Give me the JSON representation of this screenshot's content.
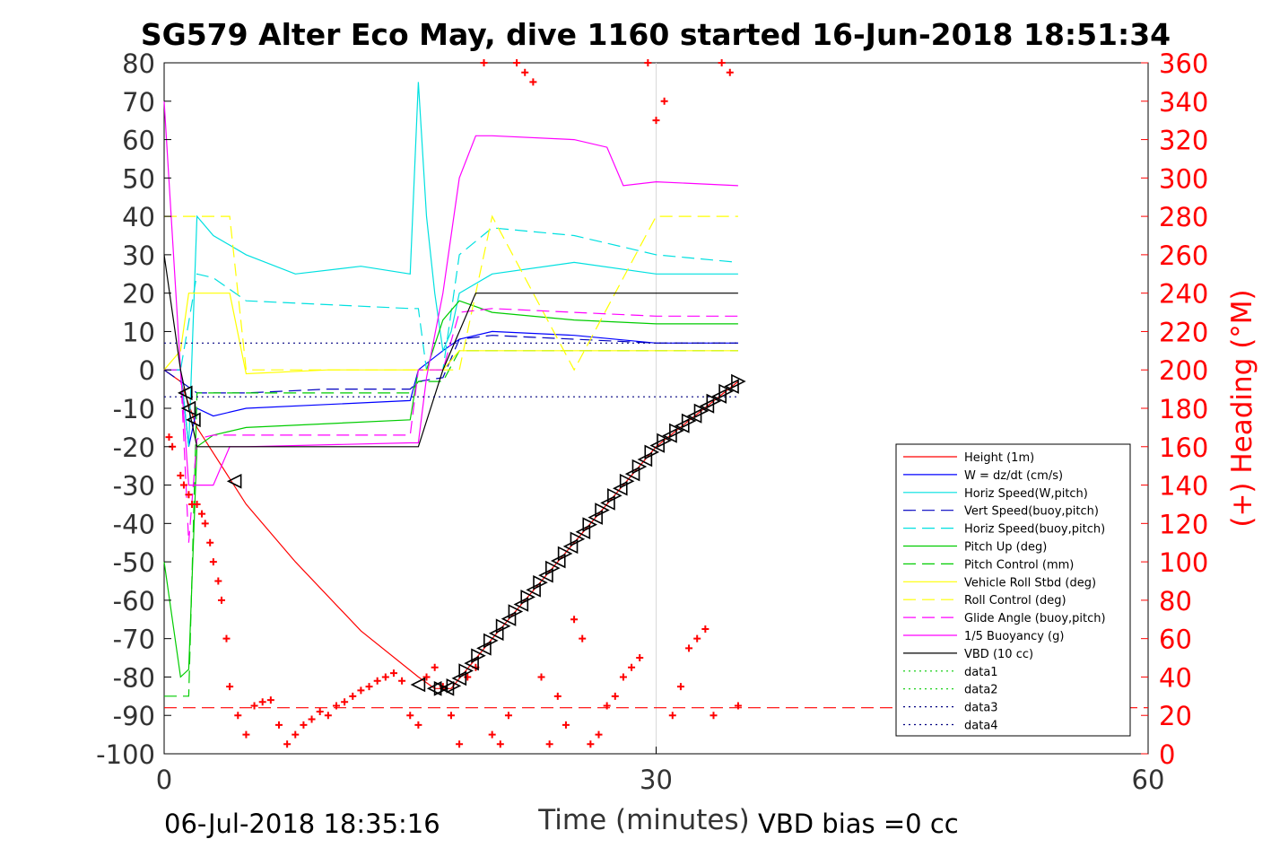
{
  "chart_data": {
    "type": "line",
    "title": "SG579 Alter Eco May, dive 1160 started 16-Jun-2018 18:51:34",
    "xlabel": "Time (minutes)",
    "ylabel": "",
    "y2label": "(+) Heading (°M)",
    "xlim": [
      0,
      60
    ],
    "ylim": [
      -100,
      80
    ],
    "y2lim": [
      0,
      360
    ],
    "xticks": [
      "0",
      "30",
      "60"
    ],
    "yticks": [
      "80",
      "70",
      "60",
      "50",
      "40",
      "30",
      "20",
      "10",
      "0",
      "-10",
      "-20",
      "-30",
      "-40",
      "-50",
      "-60",
      "-70",
      "-80",
      "-90",
      "-100"
    ],
    "y2ticks": [
      "360",
      "340",
      "320",
      "300",
      "280",
      "260",
      "240",
      "220",
      "200",
      "180",
      "160",
      "140",
      "120",
      "100",
      "80",
      "60",
      "40",
      "20",
      "0"
    ],
    "grid": "x-only at 30",
    "legend_position": "lower-right",
    "footer_left": "06-Jul-2018 18:35:16",
    "footer_right": "VBD bias =0 cc",
    "series": [
      {
        "name": "Height (1m)",
        "color": "#ff0000",
        "style": "solid",
        "x": [
          0,
          1,
          2,
          5,
          8,
          12,
          15.5,
          16.5,
          17.5,
          20,
          25,
          30,
          35
        ],
        "values": [
          0,
          -3,
          -15,
          -35,
          -50,
          -68,
          -80,
          -83,
          -83,
          -70,
          -45,
          -20,
          -3
        ]
      },
      {
        "name": "W = dz/dt (cm/s)",
        "color": "#0000ff",
        "style": "solid",
        "x": [
          0,
          1,
          1.5,
          2,
          3,
          5,
          10,
          15,
          15.5,
          17,
          18,
          20,
          25,
          30,
          35
        ],
        "values": [
          0,
          0,
          -20,
          -10,
          -12,
          -10,
          -9,
          -8,
          0,
          5,
          8,
          10,
          9,
          7,
          7
        ]
      },
      {
        "name": "Horiz Speed(W,pitch)",
        "color": "#00e0e0",
        "style": "solid",
        "x": [
          0,
          1,
          1.5,
          2,
          3,
          5,
          8,
          12,
          15,
          15.5,
          16,
          16.5,
          17,
          17.5,
          18,
          20,
          25,
          30,
          35
        ],
        "values": [
          0,
          0,
          -20,
          40,
          35,
          30,
          25,
          27,
          25,
          75,
          40,
          20,
          5,
          10,
          20,
          25,
          28,
          25,
          25
        ]
      },
      {
        "name": "Vert Speed(buoy,pitch)",
        "color": "#0000c0",
        "style": "dashed",
        "x": [
          0,
          2,
          5,
          10,
          15,
          15.5,
          17,
          18,
          20,
          25,
          30,
          35
        ],
        "values": [
          0,
          -6,
          -6,
          -5,
          -5,
          -3,
          -2,
          8,
          9,
          8,
          7,
          7
        ]
      },
      {
        "name": "Horiz Speed(buoy,pitch)",
        "color": "#00e0e0",
        "style": "dashed",
        "x": [
          0,
          1,
          2,
          3,
          5,
          10,
          15,
          15.5,
          16,
          17,
          18,
          20,
          25,
          30,
          35
        ],
        "values": [
          0,
          0,
          25,
          24,
          18,
          17,
          16,
          16,
          0,
          0,
          30,
          37,
          35,
          30,
          28
        ]
      },
      {
        "name": "Pitch Up (deg)",
        "color": "#00cc00",
        "style": "solid",
        "x": [
          0,
          1,
          1.5,
          2,
          3,
          5,
          10,
          15,
          15.5,
          16,
          17,
          18,
          20,
          25,
          30,
          35
        ],
        "values": [
          -50,
          -80,
          -78,
          -20,
          -17,
          -15,
          -14,
          -13,
          0,
          0,
          13,
          18,
          15,
          13,
          12,
          12
        ]
      },
      {
        "name": "Pitch Control (mm)",
        "color": "#00cc00",
        "style": "dashed",
        "x": [
          0,
          1,
          1.5,
          2,
          15,
          15.5,
          17,
          18,
          35
        ],
        "values": [
          -85,
          -85,
          -85,
          -6,
          -6,
          -3,
          -3,
          5,
          5
        ]
      },
      {
        "name": "Vehicle Roll Stbd (deg)",
        "color": "#ffff00",
        "style": "solid",
        "x": [
          0,
          1,
          1.5,
          2,
          3,
          4,
          5,
          10,
          15,
          15.5,
          17,
          18,
          20,
          25,
          30,
          35
        ],
        "values": [
          0,
          5,
          20,
          20,
          20,
          20,
          -1,
          0,
          0,
          0,
          0,
          5,
          5,
          5,
          5,
          5
        ]
      },
      {
        "name": "Roll Control (deg)",
        "color": "#ffff00",
        "style": "dashed",
        "x": [
          0,
          1,
          1.5,
          2,
          3,
          4,
          5,
          10,
          15,
          15.5,
          17,
          18,
          20,
          25,
          30,
          35
        ],
        "values": [
          40,
          40,
          40,
          40,
          40,
          40,
          0,
          0,
          0,
          0,
          0,
          0,
          40,
          0,
          40,
          40
        ]
      },
      {
        "name": "Glide Angle (buoy,pitch)",
        "color": "#ff00ff",
        "style": "dashed",
        "x": [
          0,
          1,
          1.5,
          2,
          3,
          5,
          10,
          15,
          15.5,
          17,
          18,
          20,
          25,
          30,
          35
        ],
        "values": [
          0,
          0,
          -45,
          -18,
          -17,
          -17,
          -17,
          -17,
          0,
          0,
          15,
          16,
          15,
          14,
          14
        ]
      },
      {
        "name": "1/5 Buoyancy (g)",
        "color": "#ff00ff",
        "style": "solid",
        "x": [
          0,
          1,
          1.5,
          2,
          3,
          4,
          5,
          15,
          15.5,
          16,
          17,
          18,
          19,
          20,
          25,
          27,
          28,
          30,
          35
        ],
        "values": [
          70,
          0,
          -30,
          -30,
          -30,
          -20,
          -20,
          -19,
          -19,
          -2,
          20,
          50,
          61,
          61,
          60,
          58,
          48,
          49,
          48
        ]
      },
      {
        "name": "VBD (10 cc)",
        "color": "#000000",
        "style": "solid",
        "x": [
          0,
          1,
          2,
          15,
          15.5,
          17,
          19,
          35
        ],
        "values": [
          30,
          0,
          -20,
          -20,
          -20,
          0,
          20,
          20
        ]
      },
      {
        "name": "data1",
        "color": "#00cc00",
        "style": "dotted",
        "x": [],
        "values": []
      },
      {
        "name": "data2",
        "color": "#00cc00",
        "style": "dotted",
        "x": [],
        "values": []
      },
      {
        "name": "data3",
        "color": "#000080",
        "style": "dotted",
        "x": [
          0,
          35
        ],
        "values": [
          7,
          7
        ]
      },
      {
        "name": "data4",
        "color": "#000080",
        "style": "dotted",
        "x": [
          0,
          35
        ],
        "values": [
          -7,
          -7
        ]
      }
    ],
    "reference_line": {
      "axis": "y",
      "value": -88,
      "color": "#ff0000",
      "style": "dashed"
    },
    "heading_points": {
      "color": "#ff0000",
      "marker": "+",
      "axis": "right",
      "x": [
        0.3,
        0.5,
        1,
        1.2,
        1.5,
        1.7,
        2,
        2.3,
        2.5,
        2.8,
        3,
        3.3,
        3.5,
        3.8,
        4,
        4.5,
        5,
        5.5,
        6,
        6.5,
        7,
        7.5,
        8,
        8.5,
        9,
        9.5,
        10,
        10.5,
        11,
        11.5,
        12,
        12.5,
        13,
        13.5,
        14,
        14.5,
        15,
        15.5,
        16,
        16.5,
        17,
        17.5,
        18,
        18.5,
        19,
        19.5,
        20,
        20.5,
        21,
        21.5,
        22,
        22.5,
        23,
        23.5,
        24,
        24.5,
        25,
        25.5,
        26,
        26.5,
        27,
        27.5,
        28,
        28.5,
        29,
        29.5,
        30,
        30.5,
        31,
        31.5,
        32,
        32.5,
        33,
        33.5,
        34,
        34.5,
        35
      ],
      "values": [
        165,
        160,
        145,
        140,
        135,
        130,
        130,
        125,
        120,
        110,
        100,
        90,
        80,
        60,
        35,
        20,
        10,
        25,
        27,
        28,
        15,
        5,
        10,
        15,
        18,
        22,
        20,
        25,
        27,
        30,
        33,
        35,
        38,
        40,
        42,
        38,
        20,
        15,
        40,
        45,
        35,
        20,
        5,
        40,
        45,
        360,
        10,
        5,
        20,
        360,
        355,
        350,
        40,
        5,
        30,
        15,
        70,
        60,
        5,
        10,
        25,
        30,
        40,
        45,
        50,
        360,
        330,
        340,
        20,
        35,
        55,
        60,
        65,
        20,
        360,
        355,
        25
      ]
    },
    "vbd_markers": {
      "color": "#000000",
      "marker": "triangle",
      "count": 55
    }
  }
}
